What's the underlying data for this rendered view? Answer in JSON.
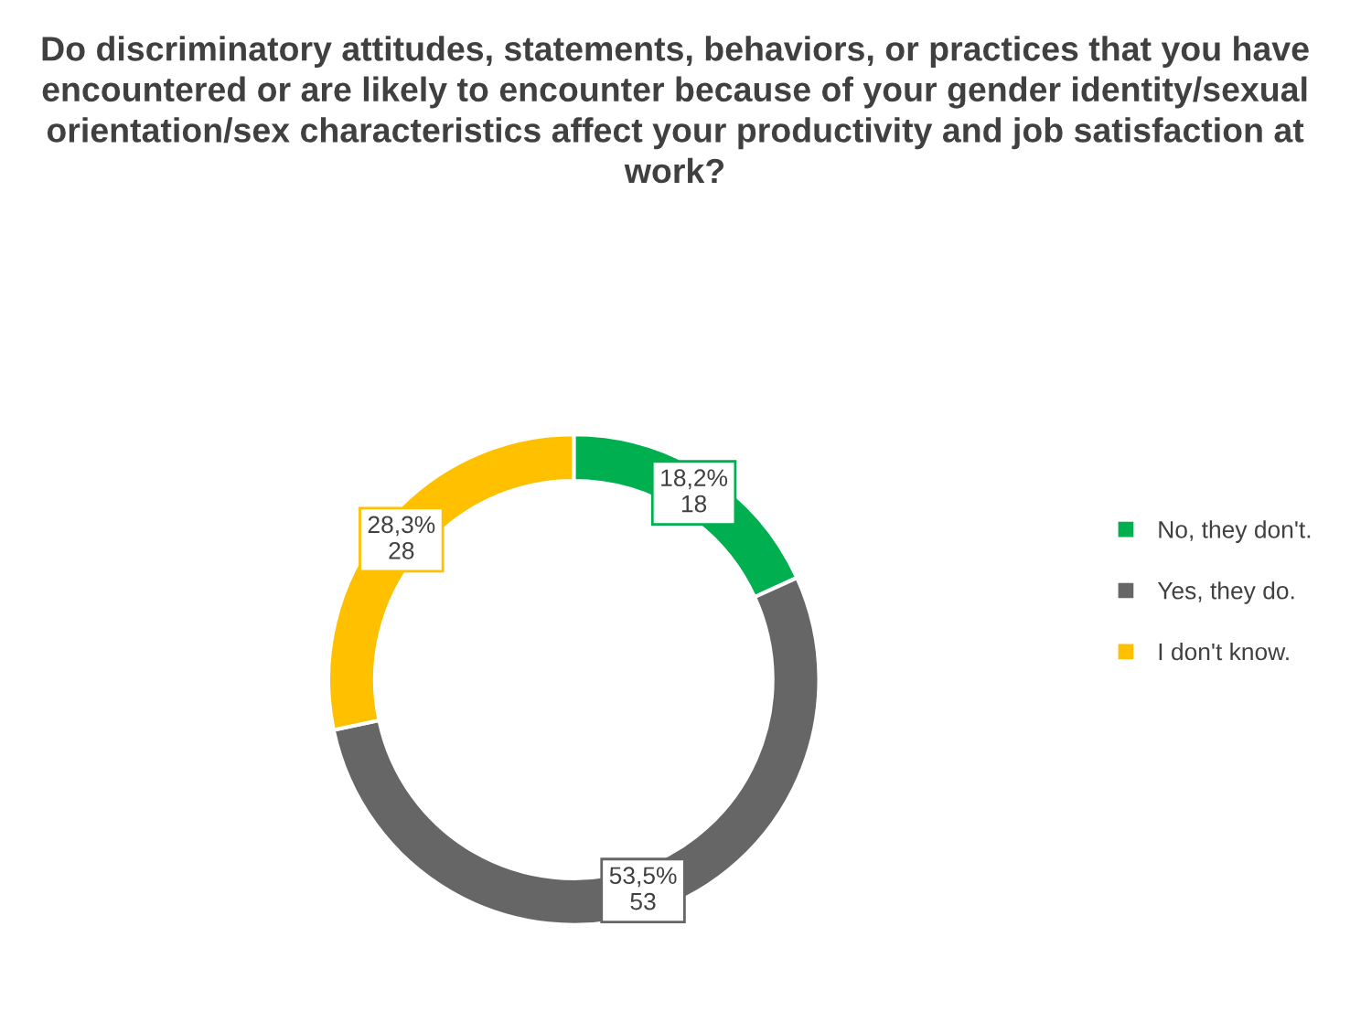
{
  "chart_data": {
    "type": "donut",
    "title": "Do discriminatory attitudes, statements, behaviors, or practices that you have encountered or are likely to encounter because of your gender identity/sexual orientation/sex characteristics affect your productivity and job satisfaction at work?",
    "categories": [
      "No, they don't.",
      "Yes, they do.",
      "I don't know."
    ],
    "values": [
      18,
      53,
      28
    ],
    "colors": [
      "#00b050",
      "#666666",
      "#ffc000"
    ],
    "value_labels": [
      "18,2%\n18",
      "53,5%\n53",
      "28,3%\n28"
    ],
    "legend": "right"
  }
}
